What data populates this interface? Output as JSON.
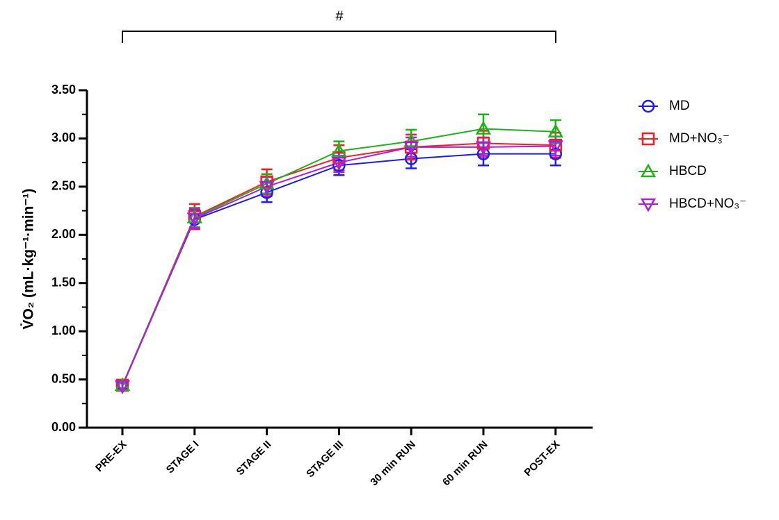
{
  "chart_data": {
    "type": "line",
    "y_label": "V̇O₂ (mL·kg⁻¹·min⁻¹)",
    "annotation": "#",
    "categories": [
      "PRE-EX",
      "STAGE I",
      "STAGE II",
      "STAGE III",
      "30 min RUN",
      "60 min RUN",
      "POST-EX"
    ],
    "series": [
      {
        "name": "MD",
        "color": "#1a1aff",
        "marker": "circle",
        "values": [
          0.44,
          2.16,
          2.44,
          2.72,
          2.79,
          2.84,
          2.84
        ],
        "errors": [
          0.03,
          0.1,
          0.1,
          0.1,
          0.1,
          0.12,
          0.12
        ]
      },
      {
        "name": "MD+NO₃⁻",
        "color": "#ff1a1a",
        "marker": "square",
        "values": [
          0.44,
          2.19,
          2.55,
          2.8,
          2.91,
          2.95,
          2.93
        ],
        "errors": [
          0.05,
          0.13,
          0.13,
          0.13,
          0.13,
          0.13,
          0.13
        ]
      },
      {
        "name": "HBCD",
        "color": "#1ab31a",
        "marker": "triangle-up",
        "values": [
          0.44,
          2.18,
          2.53,
          2.87,
          2.97,
          3.1,
          3.07
        ],
        "errors": [
          0.03,
          0.1,
          0.1,
          0.1,
          0.12,
          0.15,
          0.12
        ]
      },
      {
        "name": "HBCD+NO₃⁻",
        "color": "#b31ae6",
        "marker": "triangle-down",
        "values": [
          0.43,
          2.17,
          2.5,
          2.75,
          2.91,
          2.91,
          2.92
        ],
        "errors": [
          0.03,
          0.1,
          0.1,
          0.1,
          0.1,
          0.1,
          0.1
        ]
      }
    ],
    "ylim": [
      0,
      3.5
    ],
    "yticks": [
      {
        "value": 0,
        "label": "0.00"
      },
      {
        "value": 0.5,
        "label": "0.50"
      },
      {
        "value": 1,
        "label": "1.00"
      },
      {
        "value": 1.5,
        "label": "1.50"
      },
      {
        "value": 2,
        "label": "2.00"
      },
      {
        "value": 2.5,
        "label": "2.50"
      },
      {
        "value": 3,
        "label": "3.00"
      },
      {
        "value": 3.5,
        "label": "3.50"
      }
    ],
    "yminorticks": [
      0.25,
      0.75,
      1.25,
      1.75,
      2.25,
      2.75,
      3.25
    ],
    "grid": false
  }
}
